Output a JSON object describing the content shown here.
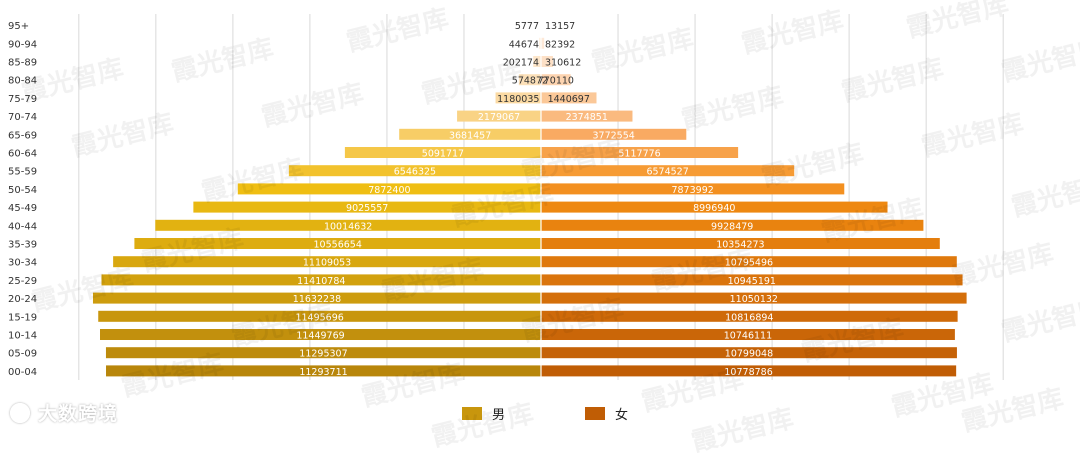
{
  "chart_data": {
    "type": "bar",
    "orientation": "horizontal-population-pyramid",
    "categories": [
      "00-04",
      "05-09",
      "10-14",
      "15-19",
      "20-24",
      "25-29",
      "30-34",
      "35-39",
      "40-44",
      "45-49",
      "50-54",
      "55-59",
      "60-64",
      "65-69",
      "70-74",
      "75-79",
      "80-84",
      "85-89",
      "90-94",
      "95+"
    ],
    "series": [
      {
        "name": "男",
        "side": "left",
        "values": [
          11293711,
          11295307,
          11449769,
          11495696,
          11632238,
          11410784,
          11109053,
          10556654,
          10014632,
          9025557,
          7872400,
          6546325,
          5091717,
          3681457,
          2179067,
          1180035,
          574872,
          202174,
          44674,
          5777
        ],
        "colors": [
          "#b8860b",
          "#bd8b0c",
          "#c2900d",
          "#c8960d",
          "#cd9c0e",
          "#d2a10e",
          "#d8a70f",
          "#ddac10",
          "#e2b211",
          "#e8b812",
          "#efbe13",
          "#f2c22d",
          "#f5c748",
          "#f7cd66",
          "#f9d385",
          "#fbdaa3",
          "#fce0b8",
          "#fde6ca",
          "#feeddb",
          "#fff3e8"
        ]
      },
      {
        "name": "女",
        "side": "right",
        "values": [
          10778786,
          10799048,
          10746111,
          10816894,
          11050132,
          10945191,
          10795496,
          10354273,
          9928479,
          8996940,
          7873992,
          6574527,
          5117776,
          3772554,
          2374851,
          1440697,
          770110,
          310612,
          82392,
          13157
        ],
        "colors": [
          "#c05d05",
          "#c56207",
          "#ca6608",
          "#cf6a09",
          "#d46f0a",
          "#da740c",
          "#df790d",
          "#e47e0e",
          "#e9830f",
          "#ee8811",
          "#f39020",
          "#f69b34",
          "#f7a24a",
          "#f9aa62",
          "#faba7f",
          "#fbc898",
          "#fdd4b0",
          "#fde0c6",
          "#fee9d8",
          "#fff1e8"
        ]
      }
    ],
    "xlim": [
      -12800000,
      12800000
    ],
    "grid": true,
    "legend": "bottom-center"
  },
  "legend": {
    "male_label": "男",
    "male_color": "#c8960d",
    "female_label": "女",
    "female_color": "#c05d05"
  },
  "watermark": {
    "text": "霞光智库"
  },
  "brand": {
    "text": "大数跨境"
  }
}
